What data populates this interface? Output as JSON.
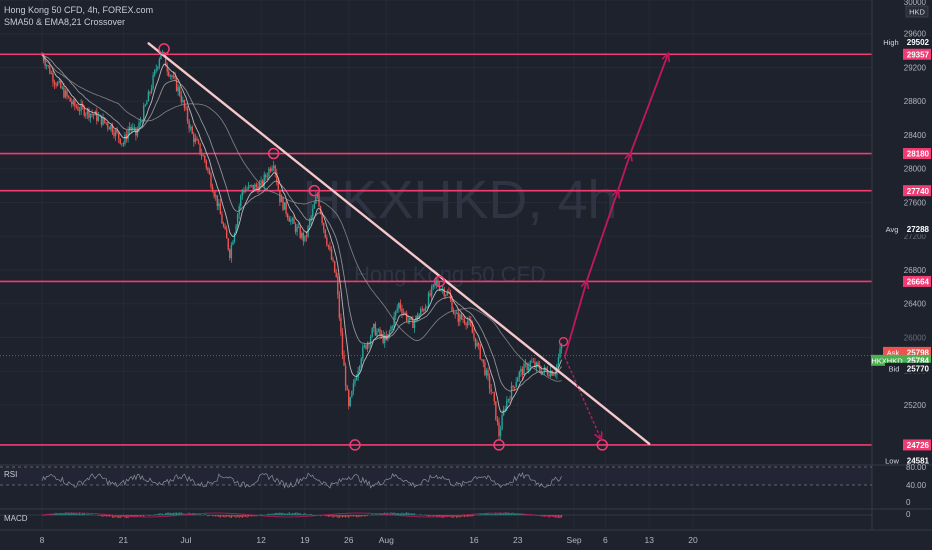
{
  "header": {
    "symbol_line": "Hong Kong 50 CFD, 4h, FOREX.com",
    "indicator_line": "SMA50 & EMA8,21 Crossover"
  },
  "watermark": {
    "ticker": "HKXHKD, 4h",
    "name": "Hong Kong 50 CFD"
  },
  "colors": {
    "background": "#1e222d",
    "up_candle": "#26a69a",
    "down_candle": "#ef5350",
    "level_line": "#f23b72",
    "trend_line": "#f5c7c9",
    "projection": "#c2185b",
    "ma_line": "#c7c7c7",
    "current_price": "#4caf50"
  },
  "chart_data": {
    "type": "candlestick",
    "symbol": "HKXHKD",
    "timeframe": "4h",
    "currency": "HKD",
    "y_range": [
      24500,
      30000
    ],
    "y_ticks": [
      25200,
      25600,
      26000,
      26400,
      26800,
      27200,
      27600,
      28000,
      28400,
      28800,
      29200,
      29600,
      30000
    ],
    "x_ticks": [
      "8",
      "21",
      "Jul",
      "12",
      "19",
      "26",
      "Aug",
      "16",
      "23",
      "Sep",
      "6",
      "13",
      "20"
    ],
    "price_scale_labels": {
      "high": {
        "label": "High",
        "value": "29502"
      },
      "ask": {
        "label": "Ask",
        "value": "25798"
      },
      "last": {
        "label": "HKXHKD",
        "value": "25784"
      },
      "bid": {
        "label": "Bid",
        "value": "25770"
      },
      "avg": {
        "label": "Avg",
        "value": "27288"
      },
      "low": {
        "label": "Low",
        "value": "24581"
      }
    },
    "levels": [
      29357,
      28180,
      27740,
      26664,
      24726
    ],
    "trendline": {
      "start": {
        "date": "2021-06-26",
        "price": 29450
      },
      "end": {
        "date": "2021-09-13",
        "price": 24740
      }
    },
    "projection_up": [
      25770,
      26664,
      27740,
      28180,
      29357
    ],
    "projection_down": [
      25770,
      24726
    ],
    "swing_lows": [
      24726,
      24726,
      24726
    ],
    "rsi": {
      "label": "RSI",
      "levels": [
        80,
        40,
        0
      ],
      "level_labels": [
        "80.00",
        "40.00",
        "0"
      ]
    },
    "macd": {
      "label": "MACD",
      "zero_label": "0"
    }
  }
}
